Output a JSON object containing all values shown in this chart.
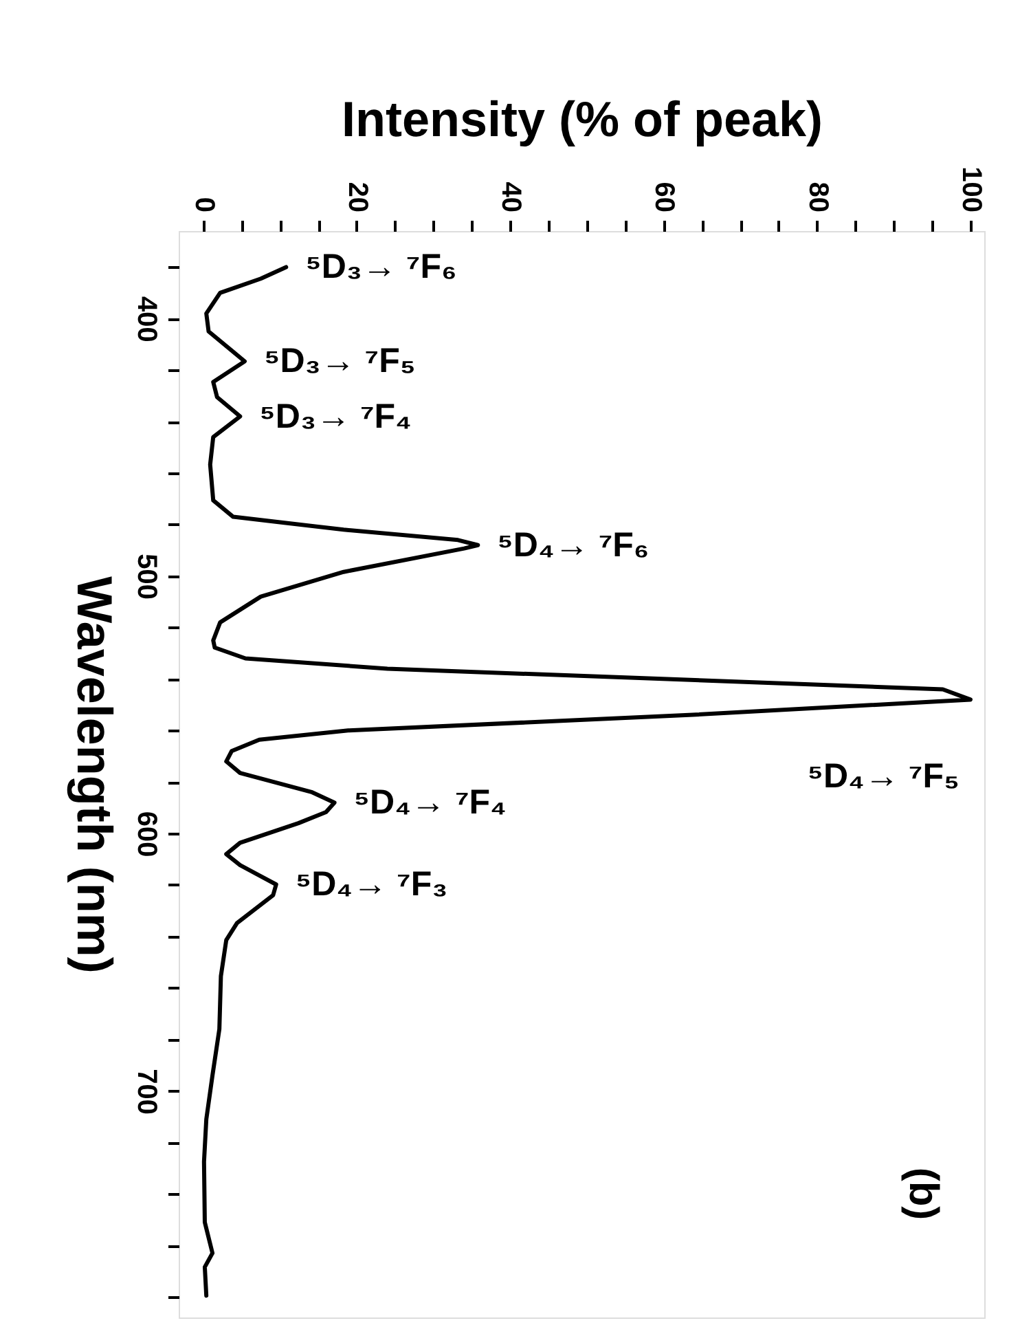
{
  "chart_data": {
    "type": "line",
    "xlabel": "Intensity (% of peak)",
    "ylabel": "Wavelength (nm)",
    "x": [
      10.8,
      7.5,
      2.2,
      0.4,
      0.7,
      5.4,
      1.3,
      1.8,
      4.8,
      1.3,
      0.9,
      1.3,
      3.9,
      18.3,
      33.2,
      35.8,
      34,
      18.3,
      7.5,
      2.2,
      1.3,
      1.5,
      5.5,
      24,
      96.4,
      100,
      63.8,
      18.9,
      7.3,
      3.7,
      3.0,
      4.8,
      14.2,
      17.1,
      16,
      12.4,
      4.8,
      3.0,
      4.8,
      9.5,
      9.1,
      4.4,
      3.0,
      2.3,
      2.1,
      1.2,
      0.4,
      0.1,
      0.2,
      1.2,
      0.2,
      0.4
    ],
    "series": [
      {
        "color": "#000000",
        "values": [
          380,
          384.5,
          390,
          398,
          405,
          416.6,
          424.6,
          430.5,
          438,
          446,
          456.7,
          470.6,
          477,
          482,
          486,
          488,
          489.3,
          498.4,
          508,
          518,
          525,
          527.8,
          532,
          536,
          544,
          548,
          553.9,
          560,
          563.6,
          568,
          572,
          576.5,
          584,
          588,
          591.7,
          596,
          603.6,
          608,
          612.3,
          619.8,
          624,
          634.8,
          641.4,
          655.4,
          676,
          694,
          711,
          727.5,
          751,
          763,
          768.4,
          779.5
        ]
      }
    ],
    "ylim": [
      788,
      366
    ],
    "yticks": [
      {
        "value": 380,
        "label": null
      },
      400,
      {
        "value": 420,
        "label": null
      },
      {
        "value": 440,
        "label": null
      },
      {
        "value": 460,
        "label": null
      },
      {
        "value": 480,
        "label": null
      },
      500,
      {
        "value": 520,
        "label": null
      },
      {
        "value": 540,
        "label": null
      },
      {
        "value": 560,
        "label": null
      },
      {
        "value": 580,
        "label": null
      },
      600,
      {
        "value": 620,
        "label": null
      },
      {
        "value": 640,
        "label": null
      },
      {
        "value": 660,
        "label": null
      },
      {
        "value": 680,
        "label": null
      },
      700,
      {
        "value": 720,
        "label": null
      },
      {
        "value": 740,
        "label": null
      },
      {
        "value": 760,
        "label": null
      },
      {
        "value": 780,
        "label": null
      }
    ],
    "xlim": [
      -3.2,
      101.8
    ],
    "xticks": [
      0,
      {
        "value": 5,
        "label": null
      },
      {
        "value": 10,
        "label": null
      },
      {
        "value": 15,
        "label": null
      },
      20,
      {
        "value": 25,
        "label": null
      },
      {
        "value": 30,
        "label": null
      },
      {
        "value": 35,
        "label": null
      },
      40,
      {
        "value": 45,
        "label": null
      },
      {
        "value": 50,
        "label": null
      },
      {
        "value": 55,
        "label": null
      },
      60,
      {
        "value": 65,
        "label": null
      },
      {
        "value": 70,
        "label": null
      },
      {
        "value": 75,
        "label": null
      },
      80,
      {
        "value": 85,
        "label": null
      },
      {
        "value": 90,
        "label": null
      },
      {
        "value": 95,
        "label": null
      },
      100
    ],
    "grid": false,
    "annotations": [
      {
        "text": "⁵D₃→ ⁷F₆",
        "x": 10.8,
        "y": 380
      },
      {
        "text": "⁵D₃→ ⁷F₅",
        "x": 5.4,
        "y": 416.6
      },
      {
        "text": "⁵D₃→ ⁷F₄",
        "x": 4.8,
        "y": 438
      },
      {
        "text": "⁵D₄→ ⁷F₆",
        "x": 35.8,
        "y": 488
      },
      {
        "text": "⁵D₄→ ⁷F₅",
        "x": 100,
        "y": 548
      },
      {
        "text": "⁵D₄→ ⁷F₄",
        "x": 17.1,
        "y": 588
      },
      {
        "text": "⁵D₄→ ⁷F₃",
        "x": 9.5,
        "y": 619.8
      },
      "(b)"
    ]
  }
}
